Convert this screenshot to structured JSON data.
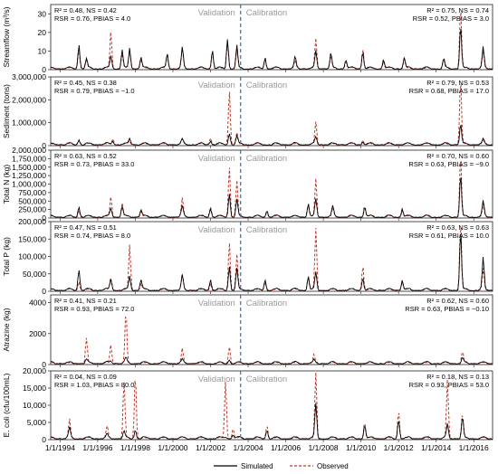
{
  "colors": {
    "simulated": "#000000",
    "observed": "#c0392b",
    "split": "#2e6fbf",
    "axis": "#222222",
    "phase_text": "#9a9a9a"
  },
  "legend": {
    "simulated": "Simulated",
    "observed": "Observed"
  },
  "phases": {
    "validation": "Validation",
    "calibration": "Calibration",
    "split_year": 2003.6
  },
  "x_ticks": [
    "1/1/1994",
    "1/1/1996",
    "1/1/1998",
    "1/1/2000",
    "1/1/2002",
    "1/1/2004",
    "1/1/2006",
    "1/1/2008",
    "1/1/2010",
    "1/1/2012",
    "1/1/2014",
    "1/1/2016"
  ],
  "chart_data": [
    {
      "type": "line",
      "ylabel": "Streamflow (m³/s)",
      "ylim": [
        0,
        35
      ],
      "yticks": [
        "0",
        "10",
        "20",
        "30"
      ],
      "ytick_values": [
        0,
        10,
        20,
        30
      ],
      "stats_left": [
        "R² = 0.48,      NS = 0.42",
        "RSR = 0.76,   PBIAS = 4.0"
      ],
      "stats_right": [
        "R² = 0.75,      NS = 0.74",
        "RSR = 0.52,   PBIAS = 3.0"
      ],
      "x_range": [
        1993.5,
        2017.0
      ],
      "peaks": [
        [
          1995.0,
          13,
          11
        ],
        [
          1995.4,
          5,
          4
        ],
        [
          1996.7,
          7,
          20
        ],
        [
          1997.3,
          10,
          8
        ],
        [
          1997.7,
          11,
          10
        ],
        [
          1998.3,
          6,
          5
        ],
        [
          1999.7,
          8,
          7
        ],
        [
          2000.5,
          11,
          10
        ],
        [
          2002.1,
          10,
          9
        ],
        [
          2002.9,
          16,
          14
        ],
        [
          2003.4,
          12,
          10
        ],
        [
          2004.9,
          6,
          5
        ],
        [
          2006.5,
          6,
          4
        ],
        [
          2007.6,
          9,
          16
        ],
        [
          2008.4,
          8,
          7
        ],
        [
          2009.2,
          5,
          4
        ],
        [
          2010.1,
          9,
          11
        ],
        [
          2011.2,
          5,
          4
        ],
        [
          2012.3,
          6,
          5
        ],
        [
          2014.4,
          5,
          4
        ],
        [
          2015.3,
          23,
          33
        ],
        [
          2016.5,
          11,
          9
        ]
      ]
    },
    {
      "type": "line",
      "ylabel": "Sediment (tons)",
      "ylim": [
        0,
        3000000
      ],
      "yticks": [
        "0",
        "1,000,000",
        "2,000,000",
        "3,000,000"
      ],
      "ytick_values": [
        0,
        1000000,
        2000000,
        3000000
      ],
      "stats_left": [
        "R² = 0.45,      NS = 0.38",
        "RSR = 0.79,   PBIAS = −1.0"
      ],
      "stats_right": [
        "R² = 0.79,      NS = 0.53",
        "RSR = 0.68,   PBIAS = 17.0"
      ],
      "x_range": [
        1993.5,
        2017.0
      ],
      "peaks": [
        [
          1995.0,
          200000,
          250000
        ],
        [
          1996.8,
          150000,
          280000
        ],
        [
          1997.7,
          250000,
          150000
        ],
        [
          2000.5,
          200000,
          200000
        ],
        [
          2002.0,
          150000,
          300000
        ],
        [
          2003.0,
          500000,
          2400000
        ],
        [
          2003.4,
          350000,
          500000
        ],
        [
          2007.6,
          300000,
          950000
        ],
        [
          2010.1,
          120000,
          200000
        ],
        [
          2015.3,
          900000,
          2900000
        ],
        [
          2016.5,
          200000,
          150000
        ]
      ]
    },
    {
      "type": "line",
      "ylabel": "Total N (kg)",
      "ylim": [
        0,
        2000000
      ],
      "yticks": [
        "0",
        "250,000",
        "500,000",
        "750,000",
        "1,000,000",
        "1,250,000",
        "1,500,000",
        "1,750,000",
        "2,000,000"
      ],
      "ytick_values": [
        0,
        250000,
        500000,
        750000,
        1000000,
        1250000,
        1500000,
        1750000,
        2000000
      ],
      "stats_left": [
        "R² = 0.63,      NS = 0.52",
        "RSR = 0.73,   PBIAS = 33.0"
      ],
      "stats_right": [
        "R² = 0.70,      NS = 0.60",
        "RSR = 0.63,   PBIAS = −9.0"
      ],
      "x_range": [
        1993.5,
        2017.0
      ],
      "peaks": [
        [
          1995.0,
          300000,
          200000
        ],
        [
          1996.7,
          250000,
          600000
        ],
        [
          1997.3,
          300000,
          400000
        ],
        [
          1998.3,
          200000,
          150000
        ],
        [
          2000.5,
          300000,
          550000
        ],
        [
          2002.0,
          250000,
          300000
        ],
        [
          2003.0,
          700000,
          1500000
        ],
        [
          2003.4,
          500000,
          1050000
        ],
        [
          2005.0,
          200000,
          150000
        ],
        [
          2007.2,
          400000,
          400000
        ],
        [
          2007.6,
          500000,
          1100000
        ],
        [
          2008.5,
          300000,
          250000
        ],
        [
          2010.2,
          300000,
          350000
        ],
        [
          2012.2,
          250000,
          200000
        ],
        [
          2015.3,
          1250000,
          1800000
        ],
        [
          2016.5,
          450000,
          350000
        ]
      ]
    },
    {
      "type": "line",
      "ylabel": "Total P (kg)",
      "ylim": [
        0,
        200000
      ],
      "yticks": [
        "0",
        "50,000",
        "100,000",
        "150,000",
        "200,000"
      ],
      "ytick_values": [
        0,
        50000,
        100000,
        150000,
        200000
      ],
      "stats_left": [
        "R² = 0.47,      NS = 0.51",
        "RSR = 0.74,   PBIAS = 8.0"
      ],
      "stats_right": [
        "R² = 0.63,      NS = 0.63",
        "RSR = 0.61,   PBIAS = 10.0"
      ],
      "x_range": [
        1993.5,
        2017.0
      ],
      "peaks": [
        [
          1995.0,
          60000,
          25000
        ],
        [
          1996.7,
          30000,
          35000
        ],
        [
          1997.7,
          40000,
          130000
        ],
        [
          1998.3,
          30000,
          20000
        ],
        [
          2000.5,
          40000,
          45000
        ],
        [
          2002.0,
          30000,
          20000
        ],
        [
          2003.0,
          70000,
          140000
        ],
        [
          2003.4,
          60000,
          100000
        ],
        [
          2004.9,
          30000,
          25000
        ],
        [
          2007.2,
          40000,
          40000
        ],
        [
          2007.6,
          50000,
          175000
        ],
        [
          2010.1,
          35000,
          70000
        ],
        [
          2012.2,
          30000,
          25000
        ],
        [
          2015.3,
          170000,
          195000
        ],
        [
          2016.5,
          90000,
          60000
        ]
      ]
    },
    {
      "type": "line",
      "ylabel": "Atrazine (kg)",
      "ylim": [
        0,
        4500
      ],
      "yticks": [
        "0",
        "2000",
        "4000"
      ],
      "ytick_values": [
        0,
        2000,
        4000
      ],
      "stats_left": [
        "R² = 0.41,      NS = 0.21",
        "RSR = 0.93,   PBIAS = 72.0"
      ],
      "stats_right": [
        "R² = 0.62,      NS = 0.60",
        "RSR = 0.63,   PBIAS = −0.10"
      ],
      "x_range": [
        1993.5,
        2017.0
      ],
      "peaks": [
        [
          1995.4,
          200,
          1600
        ],
        [
          1996.7,
          150,
          1200
        ],
        [
          1997.5,
          300,
          3350
        ],
        [
          2000.5,
          200,
          900
        ],
        [
          2003.0,
          250,
          1100
        ],
        [
          2007.5,
          150,
          500
        ],
        [
          2015.4,
          300,
          750
        ]
      ]
    },
    {
      "type": "line",
      "ylabel": "E. coli (cfu/100mL)",
      "ylim": [
        0,
        20000
      ],
      "yticks": [
        "0",
        "5,000",
        "10,000",
        "15,000",
        "20,000"
      ],
      "ytick_values": [
        0,
        5000,
        10000,
        15000,
        20000
      ],
      "stats_left": [
        "R² = 0.04,      NS = 0.09",
        "RSR = 1.03,   PBIAS = 80.0"
      ],
      "stats_right": [
        "R² = 0.18,      NS = 0.13",
        "RSR = 0.93,   PBIAS = 53.0"
      ],
      "x_range": [
        1993.5,
        2017.0
      ],
      "peaks": [
        [
          1994.5,
          3000,
          5500
        ],
        [
          1996.5,
          1000,
          3500
        ],
        [
          1997.4,
          2000,
          17000
        ],
        [
          1998.0,
          2500,
          19000
        ],
        [
          2002.8,
          500,
          17000
        ],
        [
          2003.2,
          1000,
          3000
        ],
        [
          2005.0,
          2500,
          4000
        ],
        [
          2007.6,
          10000,
          19000
        ],
        [
          2010.2,
          4000,
          5000
        ],
        [
          2012.0,
          5500,
          8000
        ],
        [
          2014.6,
          4000,
          17000
        ],
        [
          2015.4,
          6000,
          7000
        ]
      ]
    }
  ]
}
